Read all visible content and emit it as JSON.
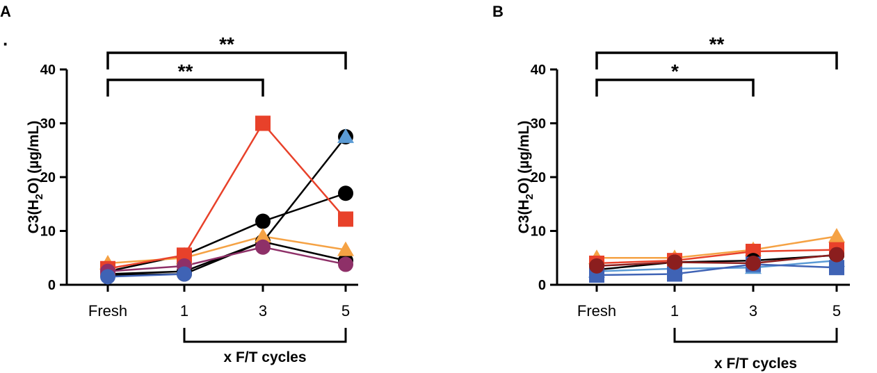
{
  "chart_data": [
    {
      "panel": "A",
      "type": "line",
      "categories": [
        "Fresh",
        "1",
        "3",
        "5"
      ],
      "ylabel": "C3(H2O) (µg/mL)",
      "ylabel_parts": {
        "pre": "C3(H",
        "sub": "2",
        "post": "O) (µg/mL)"
      },
      "ylim": [
        0,
        40
      ],
      "yticks": [
        "0",
        "10",
        "20",
        "30",
        "40"
      ],
      "xgroup_label": "x F/T cycles",
      "stray_mark": "·",
      "significance": [
        {
          "from": "Fresh",
          "to": "3",
          "label": "**"
        },
        {
          "from": "Fresh",
          "to": "5",
          "label": "**"
        }
      ],
      "series": [
        {
          "name": "black-1",
          "color": "#000000",
          "marker": "circle",
          "values": [
            2.0,
            2.5,
            8.0,
            4.5
          ]
        },
        {
          "name": "black-2",
          "color": "#000000",
          "marker": "circle",
          "values": [
            2.5,
            5.5,
            11.8,
            17.0
          ]
        },
        {
          "name": "black-3",
          "color": "#000000",
          "marker": "circle",
          "values": [
            1.8,
            2.0,
            8.0,
            27.5
          ]
        },
        {
          "name": "blue",
          "color": "#5b9bd5",
          "marker": "triangle",
          "values": [
            null,
            null,
            null,
            27.5
          ]
        },
        {
          "name": "orange",
          "color": "#f5a244",
          "marker": "triangle",
          "values": [
            4.0,
            5.0,
            9.0,
            6.5
          ]
        },
        {
          "name": "red",
          "color": "#e8412a",
          "marker": "square",
          "values": [
            3.0,
            5.5,
            30.0,
            12.2
          ]
        },
        {
          "name": "purple",
          "color": "#8e3068",
          "marker": "circle",
          "values": [
            2.5,
            3.5,
            7.0,
            3.8
          ]
        },
        {
          "name": "navy",
          "color": "#3f63b5",
          "marker": "circle",
          "values": [
            1.5,
            2.0,
            null,
            null
          ]
        }
      ]
    },
    {
      "panel": "B",
      "type": "line",
      "categories": [
        "Fresh",
        "1",
        "3",
        "5"
      ],
      "ylabel": "C3(H2O) (µg/mL)",
      "ylabel_parts": {
        "pre": "C3(H",
        "sub": "2",
        "post": "O) (µg/mL)"
      },
      "ylim": [
        0,
        40
      ],
      "yticks": [
        "0",
        "10",
        "20",
        "30",
        "40"
      ],
      "xgroup_label": "x F/T cycles",
      "significance": [
        {
          "from": "Fresh",
          "to": "3",
          "label": "*"
        },
        {
          "from": "Fresh",
          "to": "5",
          "label": "**"
        }
      ],
      "series": [
        {
          "name": "orange",
          "color": "#f5a244",
          "marker": "triangle",
          "values": [
            5.0,
            5.0,
            6.5,
            9.0
          ]
        },
        {
          "name": "red",
          "color": "#e8412a",
          "marker": "square",
          "values": [
            4.0,
            4.5,
            6.2,
            6.5
          ]
        },
        {
          "name": "black",
          "color": "#000000",
          "marker": "circle",
          "values": [
            2.8,
            4.2,
            4.5,
            5.5
          ]
        },
        {
          "name": "light-blue",
          "color": "#5b9bd5",
          "marker": "triangle",
          "values": [
            2.5,
            3.0,
            3.2,
            4.5
          ]
        },
        {
          "name": "navy",
          "color": "#3f63b5",
          "marker": "square",
          "values": [
            1.8,
            2.0,
            3.8,
            3.2
          ]
        },
        {
          "name": "dark-red",
          "color": "#8b1e1e",
          "marker": "circle",
          "values": [
            3.5,
            4.2,
            4.0,
            5.6
          ]
        }
      ]
    }
  ]
}
